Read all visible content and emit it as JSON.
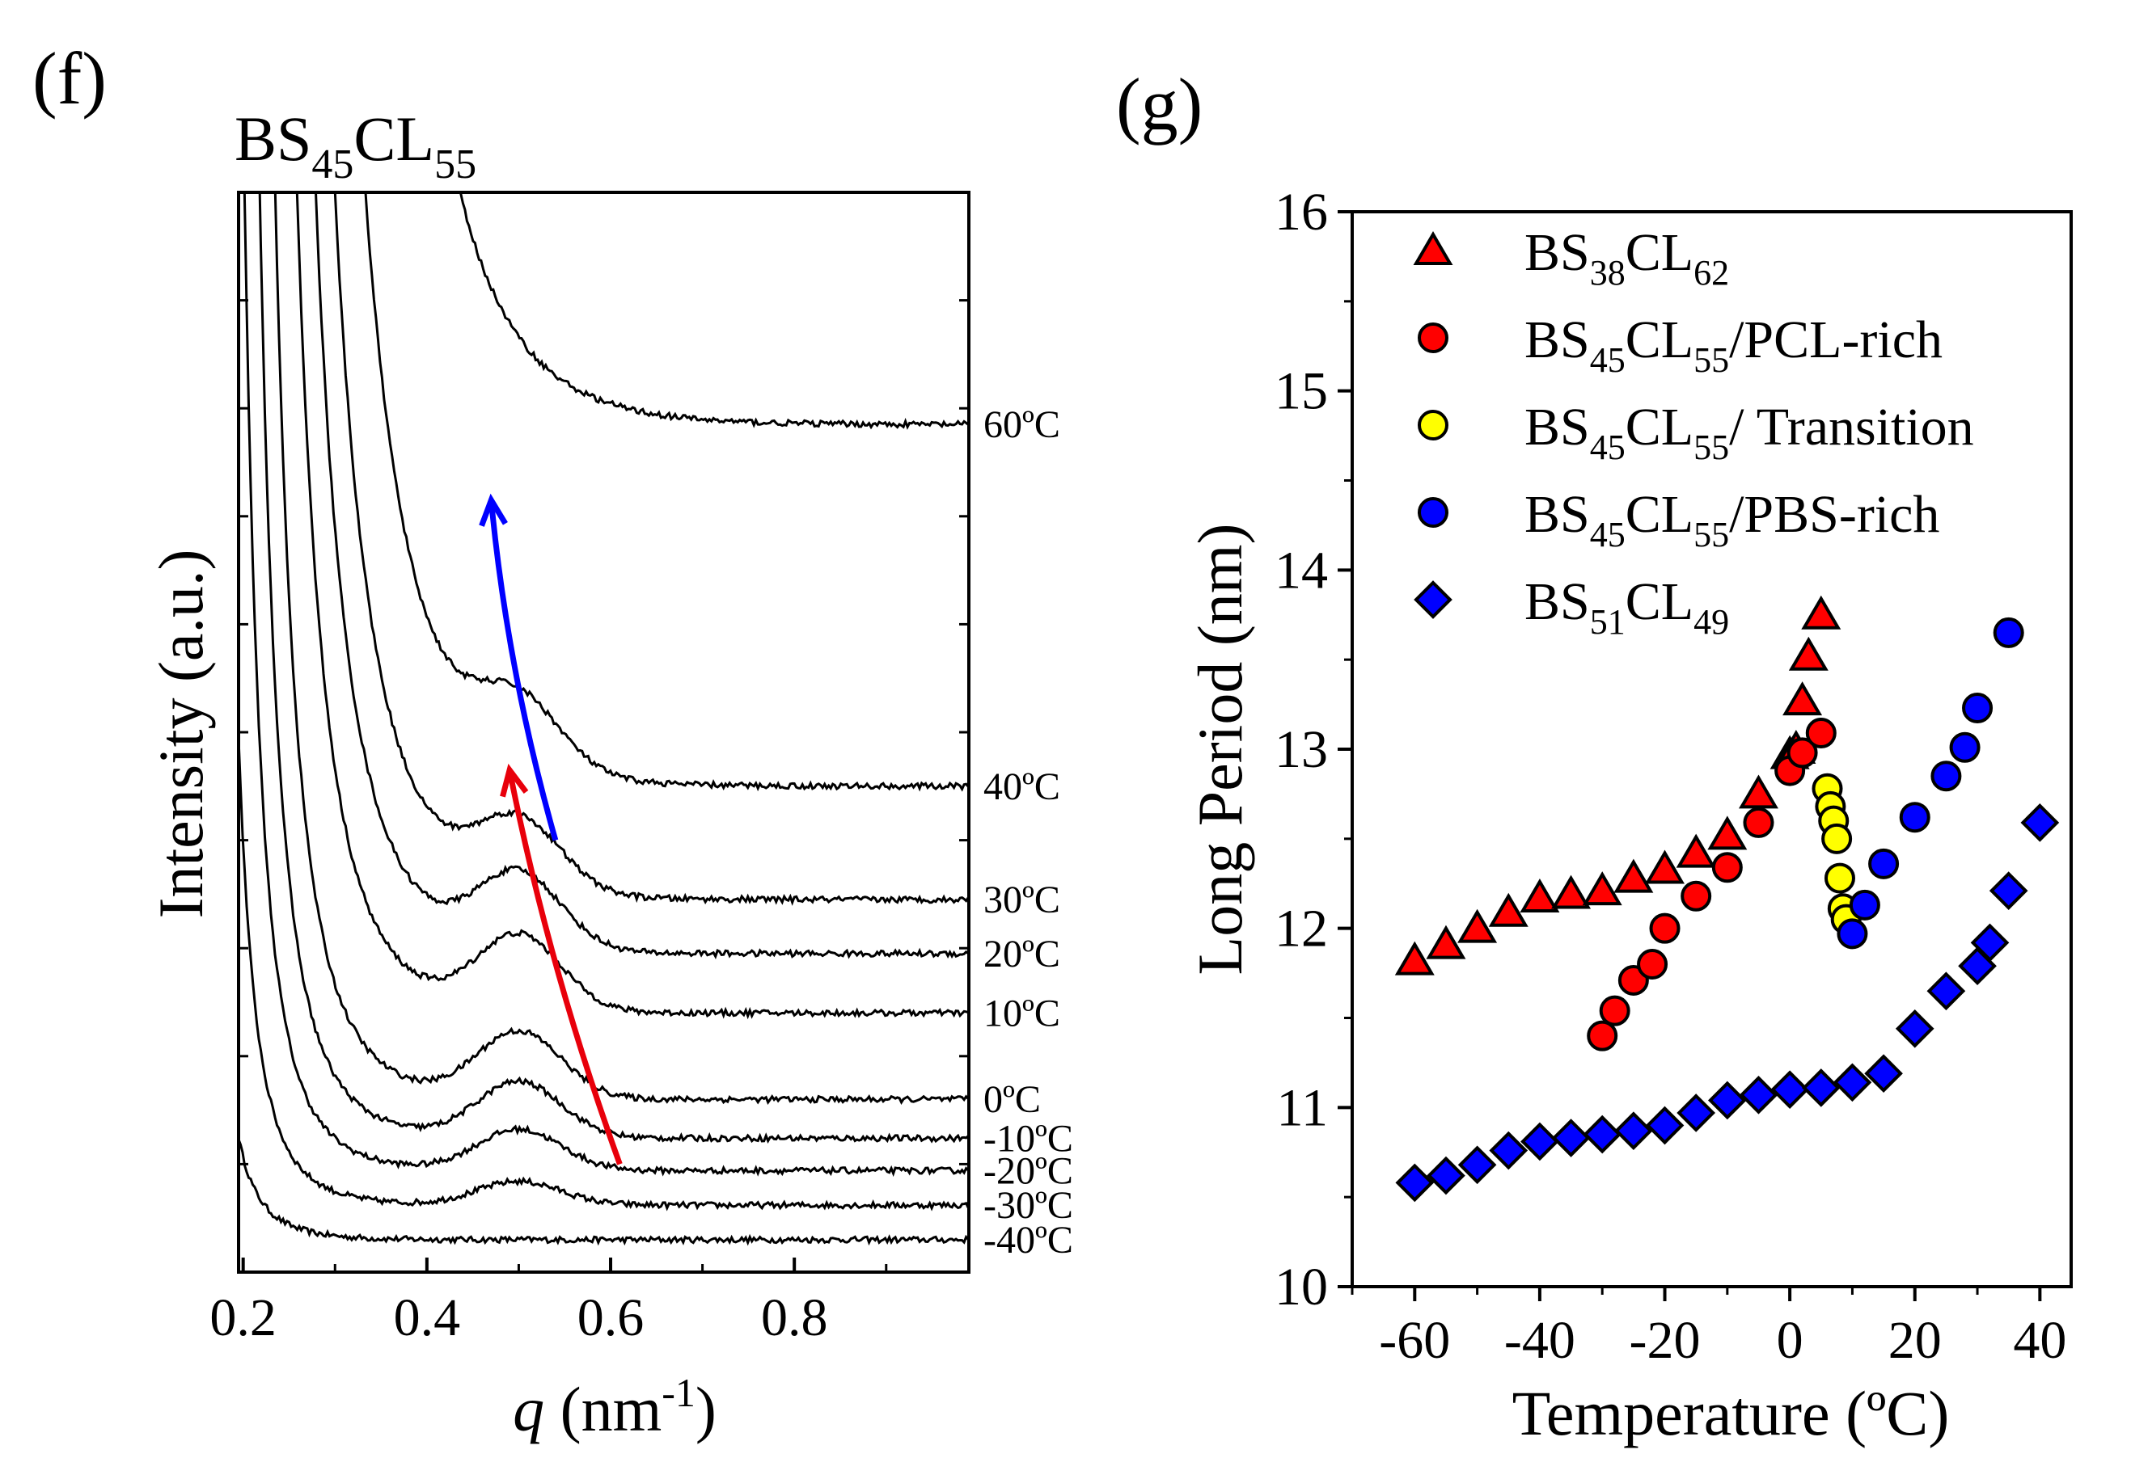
{
  "chart_data": [
    {
      "panel": "(f)",
      "type": "line",
      "title": "BS45CL55",
      "title_parts": {
        "a": "BS",
        "a_sub": "45",
        "b": "CL",
        "b_sub": "55"
      },
      "xlabel": {
        "symbol": "q",
        "unit_open": " (nm",
        "unit_exp": "-1",
        "unit_close": ")"
      },
      "ylabel": "Intensity (a.u.)",
      "xlim": [
        0.195,
        0.99
      ],
      "ylim": [
        0,
        100
      ],
      "xticks": [
        0.2,
        0.4,
        0.6,
        0.8
      ],
      "xtick_labels": [
        "0.2",
        "0.4",
        "0.6",
        "0.8"
      ],
      "y_minor_ticks": [
        10,
        20,
        30,
        40,
        50,
        60,
        70,
        80,
        90
      ],
      "series": [
        {
          "name": "-40ºC",
          "tail": 3.0,
          "peak": 0.0
        },
        {
          "name": "-30ºC",
          "tail": 6.2,
          "peak": 2.2
        },
        {
          "name": "-20ºC",
          "tail": 9.4,
          "peak": 3.8
        },
        {
          "name": "-10ºC",
          "tail": 12.4,
          "peak": 5.2
        },
        {
          "name": "0ºC",
          "tail": 16.0,
          "peak": 6.2
        },
        {
          "name": "10ºC",
          "tail": 24.0,
          "peak": 7.0
        },
        {
          "name": "20ºC",
          "tail": 29.5,
          "peak": 7.0
        },
        {
          "name": "30ºC",
          "tail": 34.5,
          "peak": 6.5
        },
        {
          "name": "40ºC",
          "tail": 45.0,
          "peak": 6.2
        },
        {
          "name": "60ºC",
          "tail": 78.5,
          "peak": 0.0
        }
      ],
      "annotations": [
        {
          "type": "arrow",
          "color": "#e8000b",
          "from": [
            0.61,
            10.0
          ],
          "to": [
            0.49,
            46.5
          ]
        },
        {
          "type": "arrow",
          "color": "#0000ff",
          "from": [
            0.54,
            40.0
          ],
          "to": [
            0.47,
            71.5
          ]
        }
      ]
    },
    {
      "panel": "(g)",
      "type": "scatter",
      "xlabel": "Temperature (ºC)",
      "ylabel": "Long Period (nm)",
      "xlim": [
        -70,
        45
      ],
      "ylim": [
        10,
        16
      ],
      "xticks": [
        -60,
        -40,
        -20,
        0,
        20,
        40
      ],
      "xtick_labels": [
        "-60",
        "-40",
        "-20",
        "0",
        "20",
        "40"
      ],
      "yticks": [
        10,
        11,
        12,
        13,
        14,
        15,
        16
      ],
      "ytick_labels": [
        "10",
        "11",
        "12",
        "13",
        "14",
        "15",
        "16"
      ],
      "series": [
        {
          "name": "BS38CL62",
          "label_parts": {
            "a": "BS",
            "a_sub": "38",
            "b": "CL",
            "b_sub": "62",
            "rest": ""
          },
          "marker": "triangle",
          "color": "#ff0000",
          "x": [
            -60,
            -55,
            -50,
            -45,
            -40,
            -35,
            -30,
            -25,
            -20,
            -15,
            -10,
            -5,
            0,
            1,
            2,
            3,
            5
          ],
          "y": [
            11.82,
            11.91,
            12.0,
            12.09,
            12.17,
            12.19,
            12.21,
            12.28,
            12.33,
            12.42,
            12.52,
            12.75,
            12.97,
            13.0,
            13.27,
            13.52,
            13.75
          ]
        },
        {
          "name": "BS45CL55/PCL-rich",
          "label_parts": {
            "a": "BS",
            "a_sub": "45",
            "b": "CL",
            "b_sub": "55",
            "rest": "/PCL-rich"
          },
          "marker": "circle",
          "color": "#ff0000",
          "x": [
            -30,
            -28,
            -25,
            -22,
            -20,
            -15,
            -10,
            -5,
            0,
            2,
            5
          ],
          "y": [
            11.4,
            11.54,
            11.71,
            11.8,
            12.0,
            12.18,
            12.34,
            12.59,
            12.88,
            12.98,
            13.09
          ]
        },
        {
          "name": "BS45CL55/ Transition",
          "label_parts": {
            "a": "BS",
            "a_sub": "45",
            "b": "CL",
            "b_sub": "55",
            "rest": "/ Transition"
          },
          "marker": "circle",
          "color": "#ffff00",
          "x": [
            6,
            6.5,
            7,
            7.5,
            8,
            8.5,
            9
          ],
          "y": [
            12.78,
            12.68,
            12.6,
            12.5,
            12.28,
            12.11,
            12.05
          ]
        },
        {
          "name": "BS45CL55/PBS-rich",
          "label_parts": {
            "a": "BS",
            "a_sub": "45",
            "b": "CL",
            "b_sub": "55",
            "rest": "/PBS-rich"
          },
          "marker": "circle",
          "color": "#0000ff",
          "x": [
            10,
            12,
            15,
            20,
            25,
            28,
            30,
            35
          ],
          "y": [
            11.97,
            12.13,
            12.36,
            12.62,
            12.85,
            13.01,
            13.23,
            13.65
          ]
        },
        {
          "name": "BS51CL49",
          "label_parts": {
            "a": "BS",
            "a_sub": "51",
            "b": "CL",
            "b_sub": "49",
            "rest": ""
          },
          "marker": "diamond",
          "color": "#0000ff",
          "x": [
            -60,
            -55,
            -50,
            -45,
            -40,
            -35,
            -30,
            -25,
            -20,
            -15,
            -10,
            -5,
            0,
            5,
            10,
            15,
            20,
            25,
            30,
            32,
            35,
            40
          ],
          "y": [
            10.58,
            10.62,
            10.68,
            10.76,
            10.81,
            10.83,
            10.85,
            10.87,
            10.9,
            10.97,
            11.04,
            11.07,
            11.1,
            11.11,
            11.14,
            11.19,
            11.44,
            11.65,
            11.79,
            11.92,
            12.21,
            12.59
          ]
        }
      ]
    }
  ]
}
